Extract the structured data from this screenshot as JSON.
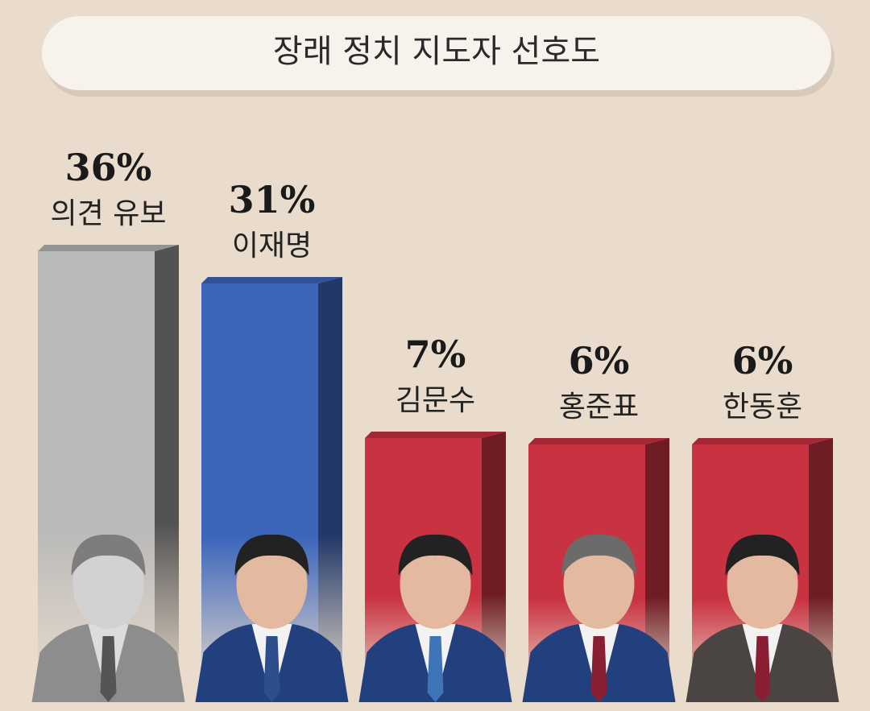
{
  "chart_data": {
    "type": "bar",
    "title": "장래 정치 지도자 선호도",
    "categories": [
      "의견 유보",
      "이재명",
      "김문수",
      "홍준표",
      "한동훈"
    ],
    "values": [
      36,
      31,
      7,
      6,
      6
    ],
    "value_labels": [
      "36%",
      "31%",
      "7%",
      "6%",
      "6%"
    ],
    "colors": [
      "#b9b9b9",
      "#3d66bb",
      "#c93241",
      "#c93241",
      "#c93241"
    ]
  }
}
